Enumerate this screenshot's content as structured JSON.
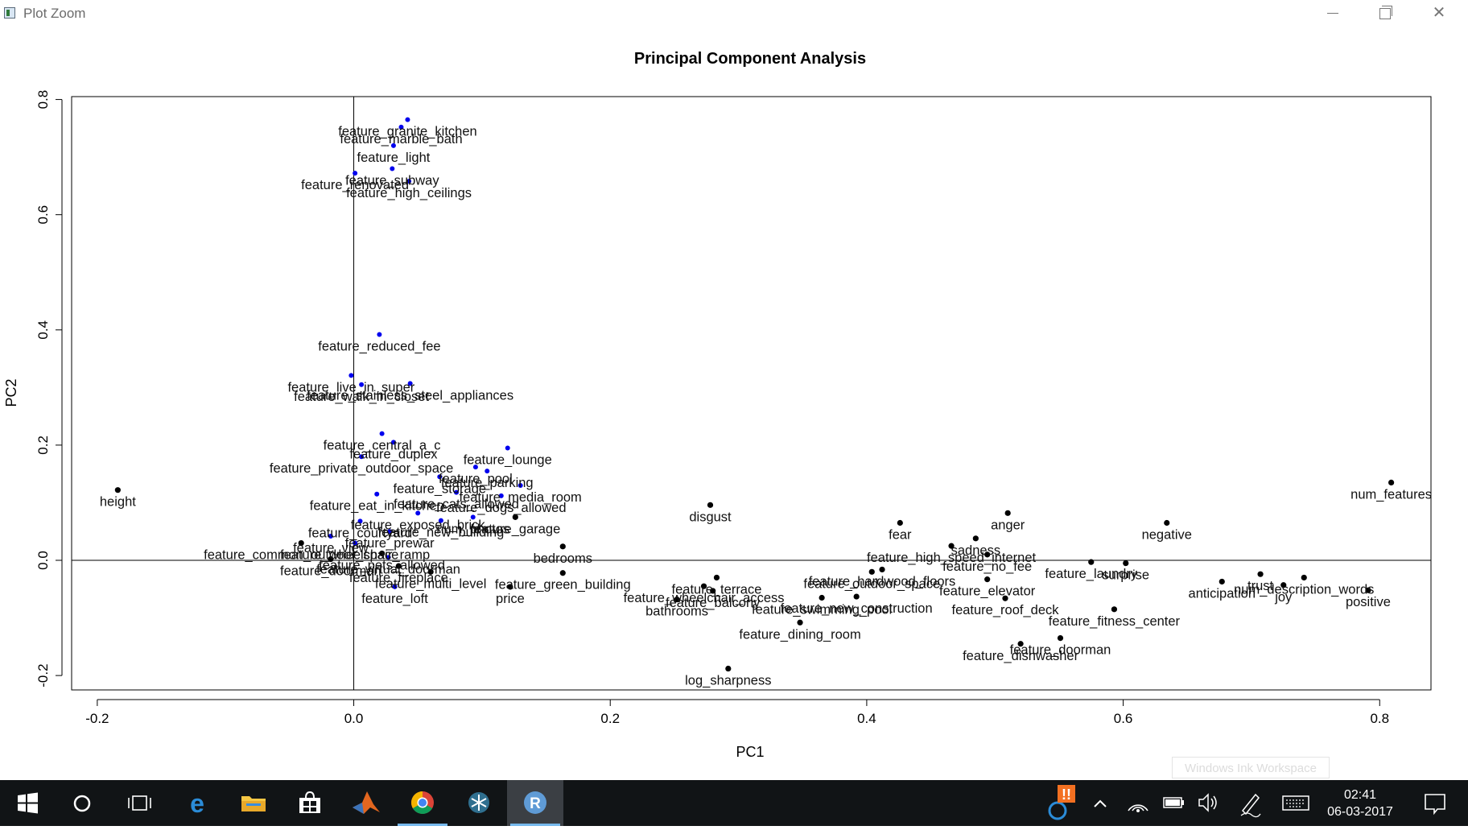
{
  "window": {
    "title": "Plot Zoom"
  },
  "chart_data": {
    "type": "scatter",
    "title": "Principal Component Analysis",
    "xlabel": "PC1",
    "ylabel": "PC2",
    "xlim": [
      -0.22,
      0.84
    ],
    "ylim": [
      -0.225,
      0.805
    ],
    "x_ticks": [
      -0.2,
      0.0,
      0.2,
      0.4,
      0.6,
      0.8
    ],
    "x_tick_labels": [
      "-0.2",
      "0.0",
      "0.2",
      "0.4",
      "0.6",
      "0.8"
    ],
    "y_ticks": [
      -0.2,
      0.0,
      0.2,
      0.4,
      0.6,
      0.8
    ],
    "y_tick_labels": [
      "-0.2",
      "0.0",
      "0.2",
      "0.4",
      "0.6",
      "0.8"
    ],
    "reference_lines": {
      "x": 0,
      "y": 0
    },
    "grid": false,
    "colors": {
      "feature_points": "#0000ee",
      "other_points": "#000000"
    },
    "points": [
      {
        "x": 0.042,
        "y": 0.765,
        "label": "feature_granite_kitchen",
        "color": "blue"
      },
      {
        "x": 0.037,
        "y": 0.752,
        "label": "feature_marble_bath",
        "color": "blue"
      },
      {
        "x": 0.031,
        "y": 0.72,
        "label": "feature_light",
        "color": "blue"
      },
      {
        "x": 0.03,
        "y": 0.68,
        "label": "feature_subway",
        "color": "blue"
      },
      {
        "x": 0.001,
        "y": 0.672,
        "label": "feature_renovated",
        "color": "blue"
      },
      {
        "x": 0.043,
        "y": 0.658,
        "label": "feature_high_ceilings",
        "color": "blue"
      },
      {
        "x": 0.02,
        "y": 0.392,
        "label": "feature_reduced_fee",
        "color": "blue"
      },
      {
        "x": 0.044,
        "y": 0.307,
        "label": "feature_stainless_steel_appliances",
        "color": "blue"
      },
      {
        "x": 0.006,
        "y": 0.305,
        "label": "feature_walk_in_closet",
        "color": "blue"
      },
      {
        "x": -0.002,
        "y": 0.321,
        "label": "feature_live_in_super",
        "color": "blue"
      },
      {
        "x": 0.022,
        "y": 0.22,
        "label": "feature_central_a_c",
        "color": "blue"
      },
      {
        "x": 0.031,
        "y": 0.205,
        "label": "feature_duplex",
        "color": "blue"
      },
      {
        "x": 0.006,
        "y": 0.18,
        "label": "feature_private_outdoor_space",
        "color": "blue"
      },
      {
        "x": 0.12,
        "y": 0.195,
        "label": "feature_lounge",
        "color": "blue"
      },
      {
        "x": 0.104,
        "y": 0.155,
        "label": "feature_parking",
        "color": "blue"
      },
      {
        "x": 0.018,
        "y": 0.115,
        "label": "feature_eat_in_kitchen",
        "color": "blue"
      },
      {
        "x": 0.067,
        "y": 0.145,
        "label": "feature_storage",
        "color": "blue"
      },
      {
        "x": 0.095,
        "y": 0.162,
        "label": "feature_pool",
        "color": "blue"
      },
      {
        "x": 0.13,
        "y": 0.13,
        "label": "feature_media_room",
        "color": "blue"
      },
      {
        "x": 0.08,
        "y": 0.118,
        "label": "feature_cats_allowed",
        "color": "blue"
      },
      {
        "x": 0.115,
        "y": 0.112,
        "label": "feature_dogs_allowed",
        "color": "blue"
      },
      {
        "x": 0.05,
        "y": 0.082,
        "label": "feature_exposed_brick",
        "color": "blue"
      },
      {
        "x": 0.126,
        "y": 0.075,
        "label": "feature_garage",
        "color": "black"
      },
      {
        "x": 0.005,
        "y": 0.068,
        "label": "feature_courtyard",
        "color": "blue"
      },
      {
        "x": 0.068,
        "y": 0.069,
        "label": "feature_new_building",
        "color": "blue"
      },
      {
        "x": 0.028,
        "y": 0.05,
        "label": "feature_prewar",
        "color": "blue"
      },
      {
        "x": -0.018,
        "y": 0.042,
        "label": "feature_view",
        "color": "blue"
      },
      {
        "x": 0.001,
        "y": 0.03,
        "label": "feature_wheelchair_ramp",
        "color": "blue"
      },
      {
        "x": -0.041,
        "y": 0.03,
        "label": "feature_common_outdoor_space",
        "color": "black"
      },
      {
        "x": 0.022,
        "y": 0.012,
        "label": "feature_pets_allowed",
        "color": "black"
      },
      {
        "x": -0.018,
        "y": 0.002,
        "label": "feature_doorman",
        "color": "black"
      },
      {
        "x": 0.027,
        "y": 0.005,
        "label": "feature_virtual_doorman",
        "color": "blue"
      },
      {
        "x": 0.06,
        "y": -0.02,
        "label": "feature_multi_level",
        "color": "black"
      },
      {
        "x": 0.035,
        "y": -0.01,
        "label": "feature_fireplace",
        "color": "black"
      },
      {
        "x": 0.032,
        "y": -0.046,
        "label": "feature_loft",
        "color": "blue"
      },
      {
        "x": 0.093,
        "y": 0.075,
        "label": "num_photos",
        "color": "blue"
      },
      {
        "x": 0.163,
        "y": 0.024,
        "label": "bedrooms",
        "color": "black"
      },
      {
        "x": 0.122,
        "y": -0.046,
        "label": "price",
        "color": "black"
      },
      {
        "x": 0.163,
        "y": -0.022,
        "label": "feature_green_building",
        "color": "black"
      },
      {
        "x": -0.184,
        "y": 0.122,
        "label": "height",
        "color": "black"
      },
      {
        "x": 0.278,
        "y": 0.096,
        "label": "disgust",
        "color": "black"
      },
      {
        "x": 0.426,
        "y": 0.065,
        "label": "fear",
        "color": "black"
      },
      {
        "x": 0.51,
        "y": 0.082,
        "label": "anger",
        "color": "black"
      },
      {
        "x": 0.634,
        "y": 0.065,
        "label": "negative",
        "color": "black"
      },
      {
        "x": 0.809,
        "y": 0.135,
        "label": "num_features",
        "color": "black"
      },
      {
        "x": 0.485,
        "y": 0.038,
        "label": "sadness",
        "color": "black"
      },
      {
        "x": 0.466,
        "y": 0.025,
        "label": "feature_high_speed_internet",
        "color": "black"
      },
      {
        "x": 0.494,
        "y": 0.01,
        "label": "feature_no_fee",
        "color": "black"
      },
      {
        "x": 0.575,
        "y": -0.003,
        "label": "feature_laundry",
        "color": "black"
      },
      {
        "x": 0.602,
        "y": -0.005,
        "label": "surprise",
        "color": "black"
      },
      {
        "x": 0.412,
        "y": -0.016,
        "label": "feature_hardwood_floors",
        "color": "black"
      },
      {
        "x": 0.404,
        "y": -0.02,
        "label": "feature_outdoor_space",
        "color": "black"
      },
      {
        "x": 0.494,
        "y": -0.033,
        "label": "feature_elevator",
        "color": "black"
      },
      {
        "x": 0.508,
        "y": -0.066,
        "label": "feature_roof_deck",
        "color": "black"
      },
      {
        "x": 0.593,
        "y": -0.085,
        "label": "feature_fitness_center",
        "color": "black"
      },
      {
        "x": 0.273,
        "y": -0.045,
        "label": "feature_wheelchair_access",
        "color": "black"
      },
      {
        "x": 0.283,
        "y": -0.03,
        "label": "feature_terrace",
        "color": "black"
      },
      {
        "x": 0.28,
        "y": -0.053,
        "label": "feature_balcony",
        "color": "black"
      },
      {
        "x": 0.252,
        "y": -0.068,
        "label": "bathrooms",
        "color": "black"
      },
      {
        "x": 0.365,
        "y": -0.065,
        "label": "feature_swimming_pool",
        "color": "black"
      },
      {
        "x": 0.392,
        "y": -0.063,
        "label": "feature_new_construction",
        "color": "black"
      },
      {
        "x": 0.348,
        "y": -0.108,
        "label": "feature_dining_room",
        "color": "black"
      },
      {
        "x": 0.292,
        "y": -0.188,
        "label": "log_sharpness",
        "color": "black"
      },
      {
        "x": 0.52,
        "y": -0.145,
        "label": "feature_dishwasher",
        "color": "black"
      },
      {
        "x": 0.551,
        "y": -0.135,
        "label": "feature_doorman",
        "color": "black"
      },
      {
        "x": 0.677,
        "y": -0.037,
        "label": "anticipation",
        "color": "black"
      },
      {
        "x": 0.707,
        "y": -0.024,
        "label": "trust",
        "color": "black"
      },
      {
        "x": 0.725,
        "y": -0.043,
        "label": "joy",
        "color": "black"
      },
      {
        "x": 0.741,
        "y": -0.03,
        "label": "num_description_words",
        "color": "black"
      },
      {
        "x": 0.791,
        "y": -0.052,
        "label": "positive",
        "color": "black"
      }
    ]
  },
  "taskbar": {
    "clock_time": "02:41",
    "clock_date": "06-03-2017",
    "tooltip": "Windows Ink Workspace",
    "notification_badge": "!!"
  }
}
